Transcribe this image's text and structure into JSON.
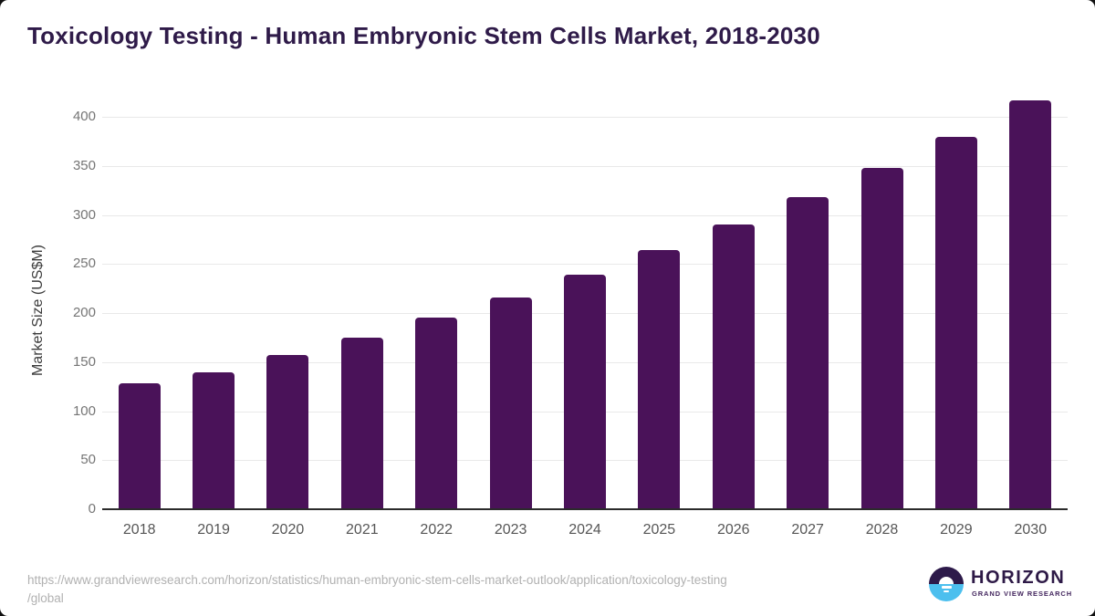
{
  "title": "Toxicology Testing - Human Embryonic Stem Cells Market, 2018-2030",
  "chart_data": {
    "type": "bar",
    "categories": [
      "2018",
      "2019",
      "2020",
      "2021",
      "2022",
      "2023",
      "2024",
      "2025",
      "2026",
      "2027",
      "2028",
      "2029",
      "2030"
    ],
    "values": [
      128,
      140,
      157,
      175,
      195,
      216,
      239,
      264,
      290,
      318,
      348,
      380,
      417
    ],
    "title": "Toxicology Testing - Human Embryonic Stem Cells Market, 2018-2030",
    "xlabel": "",
    "ylabel": "Market Size (US$M)",
    "ylim": [
      0,
      430
    ],
    "yticks": [
      0,
      50,
      100,
      150,
      200,
      250,
      300,
      350,
      400
    ],
    "grid": true,
    "legend": false,
    "bar_color": "#4a1259",
    "gridline_color": "#e9e9e9",
    "axis_line_color": "#2b2b2b"
  },
  "footer": {
    "source_url_line1": "https://www.grandviewresearch.com/horizon/statistics/human-embryonic-stem-cells-market-outlook/application/toxicology-testing",
    "source_url_line2": "/global",
    "logo": {
      "name": "HORIZON",
      "subtitle": "GRAND VIEW RESEARCH",
      "icon": "horizon-sun-circle-icon",
      "purple": "#2d1a4a",
      "blue": "#4cbfee"
    }
  },
  "colors": {
    "title_text": "#2f1b49",
    "y_tick_text": "#757575",
    "x_tick_text": "#565656",
    "url_text": "#b1b1b1"
  }
}
